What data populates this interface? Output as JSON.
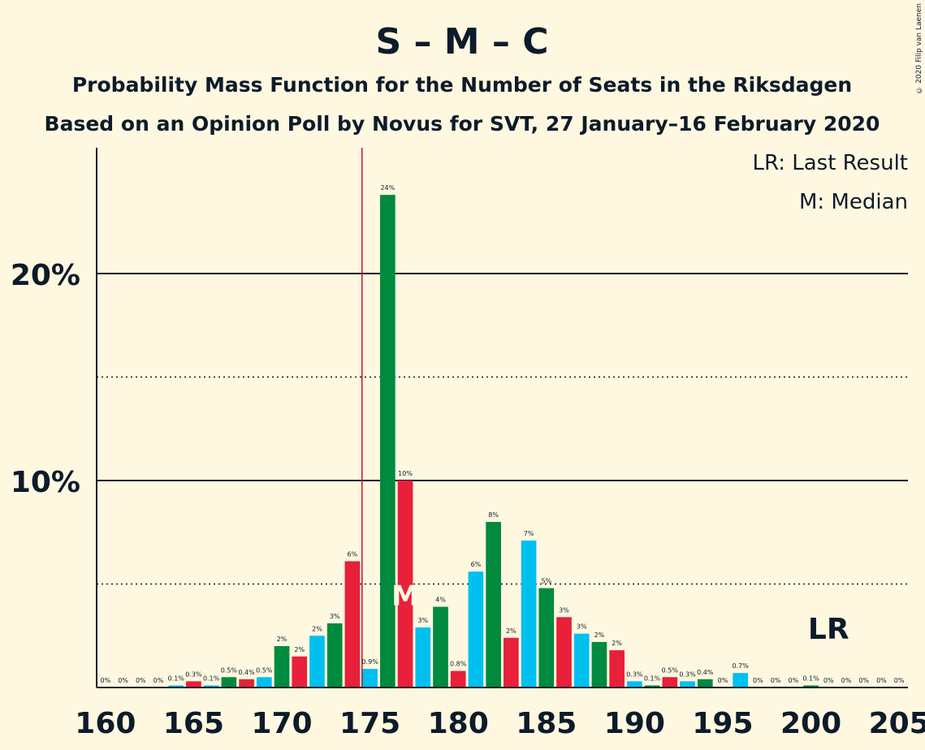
{
  "copyright": "© 2020 Filip van Laenen",
  "chart_data": {
    "type": "bar",
    "title": "S – M – C",
    "subtitle": "Probability Mass Function for the Number of Seats in the Riksdagen",
    "subtitle2": "Based on an Opinion Poll by Novus for SVT, 27 January–16 February 2020",
    "legend": [
      "LR: Last Result",
      "M: Median"
    ],
    "xlim": [
      160,
      205
    ],
    "ylim": [
      0,
      26
    ],
    "x_ticks": [
      160,
      165,
      170,
      175,
      180,
      185,
      190,
      195,
      200,
      205
    ],
    "y_ticks": [
      {
        "value": 10,
        "label": "10%"
      },
      {
        "value": 20,
        "label": "20%"
      }
    ],
    "dotted_lines": [
      5,
      15
    ],
    "majority_line": 175,
    "median": 177,
    "median_marker": "M",
    "last_result": 201,
    "last_result_marker": "LR",
    "colors": {
      "S": "#e8203a",
      "M": "#00c0f0",
      "C": "#008a3e",
      "majority": "#c8102e"
    },
    "seats": [
      160,
      161,
      162,
      163,
      164,
      165,
      166,
      167,
      168,
      169,
      170,
      171,
      172,
      173,
      174,
      175,
      176,
      177,
      178,
      179,
      180,
      181,
      182,
      183,
      184,
      185,
      186,
      187,
      188,
      189,
      190,
      191,
      192,
      193,
      194,
      195,
      196,
      197,
      198,
      199,
      200,
      201,
      202,
      203,
      204,
      205
    ],
    "values": [
      0,
      0,
      0,
      0,
      0.1,
      0.3,
      0.1,
      0.5,
      0.4,
      0.5,
      2,
      1.5,
      2.5,
      3.1,
      6.1,
      0.9,
      23.8,
      10,
      2.9,
      3.9,
      0.8,
      5.6,
      8,
      2.4,
      7.1,
      4.8,
      3.4,
      2.6,
      2.2,
      1.8,
      0.3,
      0.1,
      0.5,
      0.3,
      0.4,
      0,
      0.7,
      0,
      0,
      0,
      0.1,
      0,
      0,
      0,
      0,
      0
    ],
    "labels": [
      "0%",
      "0%",
      "0%",
      "0%",
      "0.1%",
      "0.3%",
      "0.1%",
      "0.5%",
      "0.4%",
      "0.5%",
      "2%",
      "2%",
      "2%",
      "3%",
      "6%",
      "0.9%",
      "24%",
      "10%",
      "3%",
      "4%",
      "0.8%",
      "6%",
      "8%",
      "2%",
      "7%",
      "5%",
      "3%",
      "3%",
      "2%",
      "2%",
      "0.3%",
      "0.1%",
      "0.5%",
      "0.3%",
      "0.4%",
      "0%",
      "0.7%",
      "0%",
      "0%",
      "0%",
      "0.1%",
      "0%",
      "0%",
      "0%",
      "0%",
      "0%"
    ],
    "bar_colors": [
      "S",
      "M",
      "C",
      "S",
      "M",
      "S",
      "M",
      "C",
      "S",
      "M",
      "C",
      "S",
      "M",
      "C",
      "S",
      "M",
      "C",
      "S",
      "M",
      "C",
      "S",
      "M",
      "C",
      "S",
      "M",
      "C",
      "S",
      "M",
      "C",
      "S",
      "M",
      "C",
      "S",
      "M",
      "C",
      "S",
      "M",
      "C",
      "S",
      "M",
      "C",
      "S",
      "M",
      "C",
      "S",
      "M"
    ]
  }
}
